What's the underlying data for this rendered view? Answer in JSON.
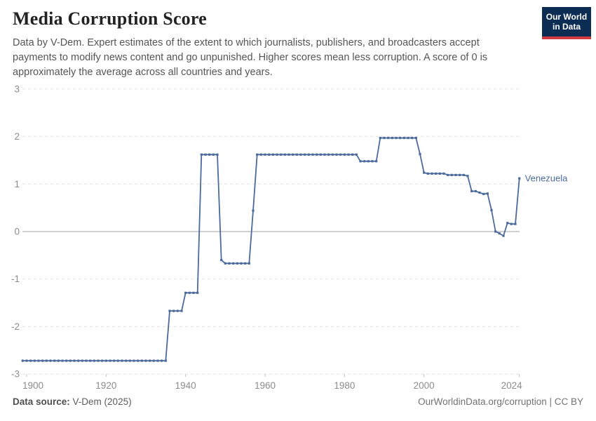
{
  "header": {
    "title": "Media Corruption Score",
    "subtitle": "Data by V-Dem. Expert estimates of the extent to which journalists, publishers, and broadcasters accept payments to modify news content and go unpunished. Higher scores mean less corruption. A score of 0 is approximately the average across all countries and years.",
    "logo": {
      "line1": "Our World",
      "line2": "in Data",
      "bg_color": "#0c2d53",
      "accent_color": "#d23a42"
    }
  },
  "chart_data": {
    "type": "line",
    "title": "Media Corruption Score",
    "xlabel": "",
    "ylabel": "",
    "xlim": [
      1899,
      2024
    ],
    "ylim": [
      -3,
      3
    ],
    "grid": "horizontal dashed gridlines, solid line at y=0",
    "legend_position": "end-of-line label",
    "x_ticks": [
      {
        "value": 1900,
        "label": "1900"
      },
      {
        "value": 1920,
        "label": "1920"
      },
      {
        "value": 1940,
        "label": "1940"
      },
      {
        "value": 1960,
        "label": "1960"
      },
      {
        "value": 1980,
        "label": "1980"
      },
      {
        "value": 2000,
        "label": "2000"
      },
      {
        "value": 2024,
        "label": "2024"
      }
    ],
    "y_ticks": [
      3,
      2,
      1,
      0,
      -1,
      -2,
      -3
    ],
    "series": [
      {
        "name": "Venezuela",
        "color": "#4C6A9C",
        "points": [
          [
            1899,
            -2.72
          ],
          [
            1900,
            -2.72
          ],
          [
            1901,
            -2.72
          ],
          [
            1902,
            -2.72
          ],
          [
            1903,
            -2.72
          ],
          [
            1904,
            -2.72
          ],
          [
            1905,
            -2.72
          ],
          [
            1906,
            -2.72
          ],
          [
            1907,
            -2.72
          ],
          [
            1908,
            -2.72
          ],
          [
            1909,
            -2.72
          ],
          [
            1910,
            -2.72
          ],
          [
            1911,
            -2.72
          ],
          [
            1912,
            -2.72
          ],
          [
            1913,
            -2.72
          ],
          [
            1914,
            -2.72
          ],
          [
            1915,
            -2.72
          ],
          [
            1916,
            -2.72
          ],
          [
            1917,
            -2.72
          ],
          [
            1918,
            -2.72
          ],
          [
            1919,
            -2.72
          ],
          [
            1920,
            -2.72
          ],
          [
            1921,
            -2.72
          ],
          [
            1922,
            -2.72
          ],
          [
            1923,
            -2.72
          ],
          [
            1924,
            -2.72
          ],
          [
            1925,
            -2.72
          ],
          [
            1926,
            -2.72
          ],
          [
            1927,
            -2.72
          ],
          [
            1928,
            -2.72
          ],
          [
            1929,
            -2.72
          ],
          [
            1930,
            -2.72
          ],
          [
            1931,
            -2.72
          ],
          [
            1932,
            -2.72
          ],
          [
            1933,
            -2.72
          ],
          [
            1934,
            -2.72
          ],
          [
            1935,
            -2.72
          ],
          [
            1936,
            -1.67
          ],
          [
            1937,
            -1.67
          ],
          [
            1938,
            -1.67
          ],
          [
            1939,
            -1.67
          ],
          [
            1940,
            -1.29
          ],
          [
            1941,
            -1.29
          ],
          [
            1942,
            -1.29
          ],
          [
            1943,
            -1.29
          ],
          [
            1944,
            1.62
          ],
          [
            1945,
            1.62
          ],
          [
            1946,
            1.62
          ],
          [
            1947,
            1.62
          ],
          [
            1948,
            1.62
          ],
          [
            1949,
            -0.6
          ],
          [
            1950,
            -0.67
          ],
          [
            1951,
            -0.67
          ],
          [
            1952,
            -0.67
          ],
          [
            1953,
            -0.67
          ],
          [
            1954,
            -0.67
          ],
          [
            1955,
            -0.67
          ],
          [
            1956,
            -0.67
          ],
          [
            1957,
            0.44
          ],
          [
            1958,
            1.62
          ],
          [
            1959,
            1.62
          ],
          [
            1960,
            1.62
          ],
          [
            1961,
            1.62
          ],
          [
            1962,
            1.62
          ],
          [
            1963,
            1.62
          ],
          [
            1964,
            1.62
          ],
          [
            1965,
            1.62
          ],
          [
            1966,
            1.62
          ],
          [
            1967,
            1.62
          ],
          [
            1968,
            1.62
          ],
          [
            1969,
            1.62
          ],
          [
            1970,
            1.62
          ],
          [
            1971,
            1.62
          ],
          [
            1972,
            1.62
          ],
          [
            1973,
            1.62
          ],
          [
            1974,
            1.62
          ],
          [
            1975,
            1.62
          ],
          [
            1976,
            1.62
          ],
          [
            1977,
            1.62
          ],
          [
            1978,
            1.62
          ],
          [
            1979,
            1.62
          ],
          [
            1980,
            1.62
          ],
          [
            1981,
            1.62
          ],
          [
            1982,
            1.62
          ],
          [
            1983,
            1.62
          ],
          [
            1984,
            1.48
          ],
          [
            1985,
            1.48
          ],
          [
            1986,
            1.48
          ],
          [
            1987,
            1.48
          ],
          [
            1988,
            1.48
          ],
          [
            1989,
            1.97
          ],
          [
            1990,
            1.97
          ],
          [
            1991,
            1.97
          ],
          [
            1992,
            1.97
          ],
          [
            1993,
            1.97
          ],
          [
            1994,
            1.97
          ],
          [
            1995,
            1.97
          ],
          [
            1996,
            1.97
          ],
          [
            1997,
            1.97
          ],
          [
            1998,
            1.97
          ],
          [
            1999,
            1.63
          ],
          [
            2000,
            1.24
          ],
          [
            2001,
            1.22
          ],
          [
            2002,
            1.22
          ],
          [
            2003,
            1.22
          ],
          [
            2004,
            1.22
          ],
          [
            2005,
            1.22
          ],
          [
            2006,
            1.19
          ],
          [
            2007,
            1.19
          ],
          [
            2008,
            1.19
          ],
          [
            2009,
            1.19
          ],
          [
            2010,
            1.19
          ],
          [
            2011,
            1.17
          ],
          [
            2012,
            0.85
          ],
          [
            2013,
            0.85
          ],
          [
            2014,
            0.82
          ],
          [
            2015,
            0.79
          ],
          [
            2016,
            0.8
          ],
          [
            2017,
            0.45
          ],
          [
            2018,
            0.0
          ],
          [
            2019,
            -0.04
          ],
          [
            2020,
            -0.09
          ],
          [
            2021,
            0.18
          ],
          [
            2022,
            0.16
          ],
          [
            2023,
            0.16
          ],
          [
            2024,
            1.12
          ]
        ]
      }
    ]
  },
  "footer": {
    "source_label": "Data source:",
    "source_value": "V-Dem (2025)",
    "credit_url": "OurWorldinData.org/corruption",
    "credit_divider": " | ",
    "credit_license": "CC BY"
  }
}
